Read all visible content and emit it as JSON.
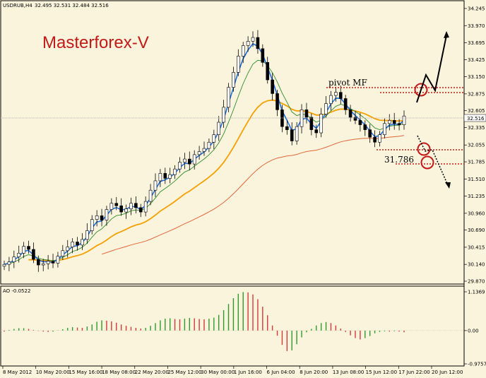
{
  "header": {
    "symbol_tf": "USDRUB,H4",
    "ohlc": "32.495 32.531 32.484 32.516",
    "oscillator": "AO -0.0522"
  },
  "brand": "Masterforex-V",
  "annotations": {
    "pivot": "pivot MF",
    "support_value": "31.786",
    "current_price": "32.516"
  },
  "colors": {
    "background": "#fbf4dd",
    "candle": "#000000",
    "ema_fast": "#1e6fd9",
    "ema_mid": "#2e8b2e",
    "ema_slow": "#f5a000",
    "ema_long": "#e0663c",
    "ao_up": "#2e9a2e",
    "ao_down": "#d23a3a",
    "level": "#c21a1a",
    "brand": "#c01a1a"
  },
  "chart_data": [
    {
      "type": "line",
      "title": "USDRUB,H4",
      "x_tick_labels": [
        "8 May 2012",
        "10 May 20:00",
        "15 May 16:00",
        "18 May 08:00",
        "22 May 20:00",
        "25 May 12:00",
        "30 May 00:00",
        "1 Jun 16:00",
        "6 Jun 04:00",
        "8 Jun 20:00",
        "13 Jun 08:00",
        "15 Jun 12:00",
        "17 Jun 22:00",
        "20 Jun 12:00"
      ],
      "y_tick_labels": [
        "34.245",
        "33.970",
        "33.695",
        "33.425",
        "33.150",
        "32.875",
        "32.605",
        "32.335",
        "32.055",
        "31.785",
        "31.510",
        "31.235",
        "30.960",
        "30.690",
        "30.415",
        "30.140",
        "29.870"
      ],
      "ylim": [
        29.87,
        34.245
      ],
      "series": [
        {
          "values": [
            30.14,
            30.18,
            30.26,
            30.32,
            30.43,
            30.38,
            30.22,
            30.13,
            30.15,
            30.19,
            30.16,
            30.27,
            30.36,
            30.42,
            30.5,
            30.45,
            30.54,
            30.68,
            30.86,
            30.92,
            30.85,
            31.02,
            31.12,
            31.08,
            30.98,
            31.03,
            31.12,
            31.05,
            30.98,
            31.15,
            31.33,
            31.48,
            31.6,
            31.52,
            31.58,
            31.67,
            31.78,
            31.83,
            31.75,
            31.9,
            31.95,
            32.0,
            32.1,
            32.22,
            32.42,
            32.66,
            32.98,
            33.22,
            33.48,
            33.65,
            33.72,
            33.78,
            33.6,
            33.38,
            33.1,
            32.88,
            32.62,
            32.35,
            32.3,
            32.12,
            32.35,
            32.62,
            32.5,
            32.3,
            32.25,
            32.55,
            32.72,
            32.85,
            32.9,
            32.8,
            32.62,
            32.5,
            32.45,
            32.38,
            32.3,
            32.18,
            32.1,
            32.22,
            32.4,
            32.45,
            32.4,
            32.38,
            32.52
          ]
        }
      ]
    },
    {
      "type": "bar",
      "title": "AO -0.0522",
      "y_tick_labels": [
        "1.1369",
        "0.00",
        "-0.9757"
      ],
      "ylim": [
        -0.9757,
        1.1369
      ],
      "values": [
        -0.03,
        0.02,
        0.05,
        0.07,
        0.07,
        0.05,
        0.02,
        -0.01,
        -0.03,
        -0.04,
        -0.03,
        0.01,
        0.04,
        0.08,
        0.1,
        0.09,
        0.08,
        0.12,
        0.18,
        0.26,
        0.3,
        0.29,
        0.27,
        0.23,
        0.18,
        0.14,
        0.11,
        0.08,
        0.06,
        0.08,
        0.14,
        0.22,
        0.3,
        0.35,
        0.36,
        0.34,
        0.33,
        0.35,
        0.37,
        0.36,
        0.34,
        0.33,
        0.35,
        0.38,
        0.46,
        0.6,
        0.78,
        0.95,
        1.08,
        1.13,
        1.12,
        1.06,
        0.92,
        0.7,
        0.45,
        0.15,
        -0.15,
        -0.42,
        -0.6,
        -0.58,
        -0.4,
        -0.2,
        -0.05,
        0.05,
        0.15,
        0.22,
        0.25,
        0.22,
        0.15,
        0.06,
        -0.04,
        -0.14,
        -0.22,
        -0.26,
        -0.22,
        -0.16,
        -0.08,
        -0.04,
        -0.02,
        -0.03,
        -0.02,
        -0.03,
        -0.05
      ]
    }
  ]
}
